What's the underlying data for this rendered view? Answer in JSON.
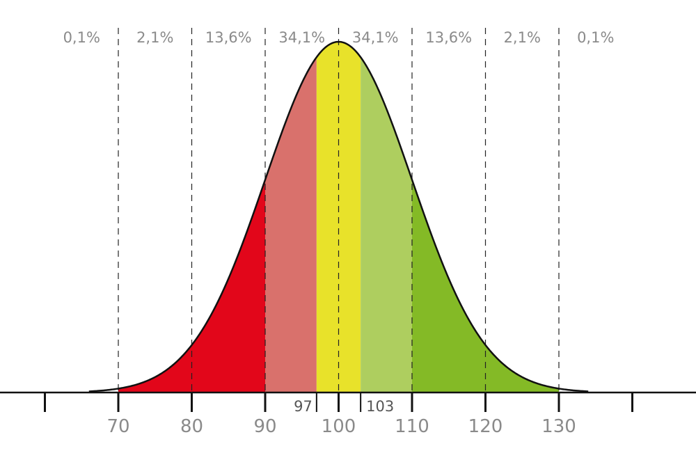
{
  "chart_data": {
    "type": "area",
    "title": "",
    "xlabel": "",
    "ylabel": "",
    "distribution": {
      "mean": 100,
      "sd": 10
    },
    "xlim": [
      60,
      140
    ],
    "grid": false,
    "ticks": [
      {
        "value": 60,
        "label": ""
      },
      {
        "value": 70,
        "label": "70"
      },
      {
        "value": 80,
        "label": "80"
      },
      {
        "value": 90,
        "label": "90"
      },
      {
        "value": 100,
        "label": "100"
      },
      {
        "value": 110,
        "label": "110"
      },
      {
        "value": 120,
        "label": "120"
      },
      {
        "value": 130,
        "label": "130"
      },
      {
        "value": 140,
        "label": ""
      }
    ],
    "inner_ticks": [
      {
        "value": 97,
        "label": "97"
      },
      {
        "value": 103,
        "label": "103"
      }
    ],
    "dashed_lines": [
      70,
      80,
      90,
      100,
      110,
      120,
      130
    ],
    "percent_labels": [
      {
        "from": 60,
        "to": 70,
        "label": "0,1%"
      },
      {
        "from": 70,
        "to": 80,
        "label": "2,1%"
      },
      {
        "from": 80,
        "to": 90,
        "label": "13,6%"
      },
      {
        "from": 90,
        "to": 100,
        "label": "34,1%"
      },
      {
        "from": 100,
        "to": 110,
        "label": "34,1%"
      },
      {
        "from": 110,
        "to": 120,
        "label": "13,6%"
      },
      {
        "from": 120,
        "to": 130,
        "label": "2,1%"
      },
      {
        "from": 130,
        "to": 140,
        "label": "0,1%"
      }
    ],
    "regions": [
      {
        "from": 70,
        "to": 90,
        "color": "#e2061a"
      },
      {
        "from": 90,
        "to": 97,
        "color": "#d9716c"
      },
      {
        "from": 97,
        "to": 103,
        "color": "#e8e22a"
      },
      {
        "from": 103,
        "to": 110,
        "color": "#aece5f"
      },
      {
        "from": 110,
        "to": 130,
        "color": "#84ba26"
      }
    ]
  }
}
